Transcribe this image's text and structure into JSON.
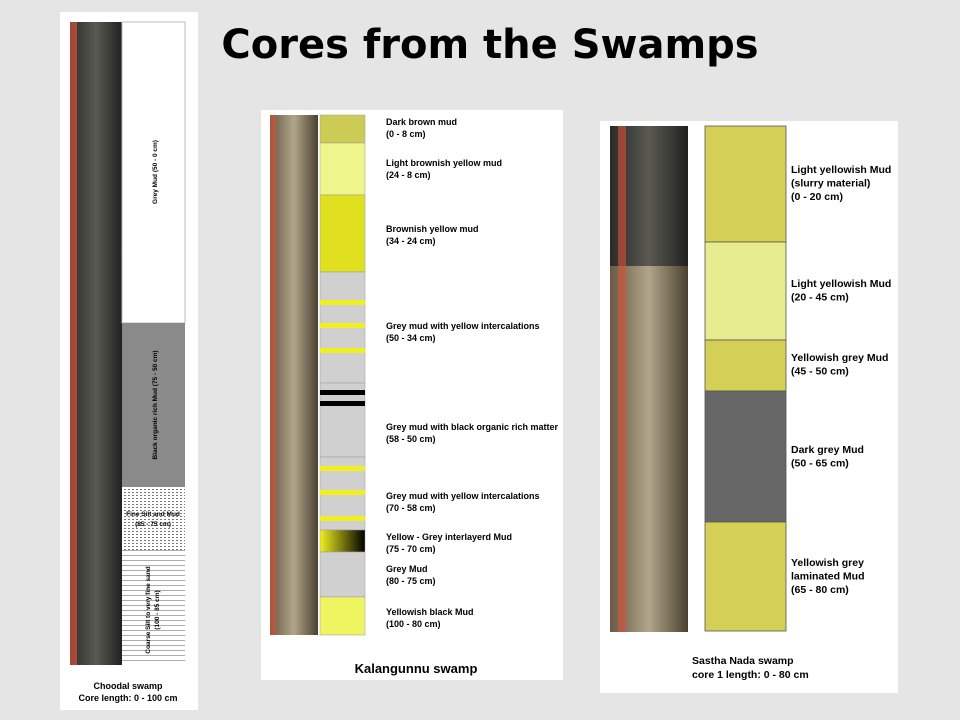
{
  "title": "Cores from the Swamps",
  "panels": [
    {
      "caption": [
        "Choodal swamp",
        "Core length: 0 - 100 cm"
      ],
      "layers": [
        [
          "Grey Mud (50 - 0 cm)"
        ],
        [
          "Black organic rich Mud (75 - 50 cm)"
        ],
        [
          "Fine Silt and Mud",
          "(85 - 75 cm)"
        ],
        [
          "Coarse Silt to very fine sand",
          "(100 - 85 cm)"
        ]
      ]
    },
    {
      "caption": [
        "Kalangunnu swamp"
      ],
      "layers": [
        [
          "Dark brown mud",
          "(0 - 8 cm)"
        ],
        [
          "Light brownish yellow mud",
          "(24 - 8 cm)"
        ],
        [
          "Brownish yellow mud",
          "(34 - 24 cm)"
        ],
        [
          "Grey mud with yellow intercalations",
          "(50 - 34 cm)"
        ],
        [
          "Grey mud with black organic rich matter",
          "(58 - 50 cm)"
        ],
        [
          "Grey mud with yellow intercalations",
          "(70 - 58 cm)"
        ],
        [
          "Yellow - Grey interlayerd Mud",
          "(75 - 70 cm)"
        ],
        [
          "Grey Mud",
          "(80 - 75 cm)"
        ],
        [
          "Yellowish black Mud",
          "(100 - 80 cm)"
        ]
      ]
    },
    {
      "caption": [
        "Sastha Nada swamp",
        "core 1 length: 0 - 80 cm"
      ],
      "layers": [
        [
          "Light yellowish Mud",
          "(slurry material)",
          "(0 - 20 cm)"
        ],
        [
          "Light yellowish Mud",
          "(20 - 45 cm)"
        ],
        [
          "Yellowish grey Mud",
          "(45 - 50 cm)"
        ],
        [
          "Dark grey Mud",
          "(50 - 65 cm)"
        ],
        [
          "Yellowish grey",
          "laminated Mud",
          "(65 - 80 cm)"
        ]
      ]
    }
  ]
}
